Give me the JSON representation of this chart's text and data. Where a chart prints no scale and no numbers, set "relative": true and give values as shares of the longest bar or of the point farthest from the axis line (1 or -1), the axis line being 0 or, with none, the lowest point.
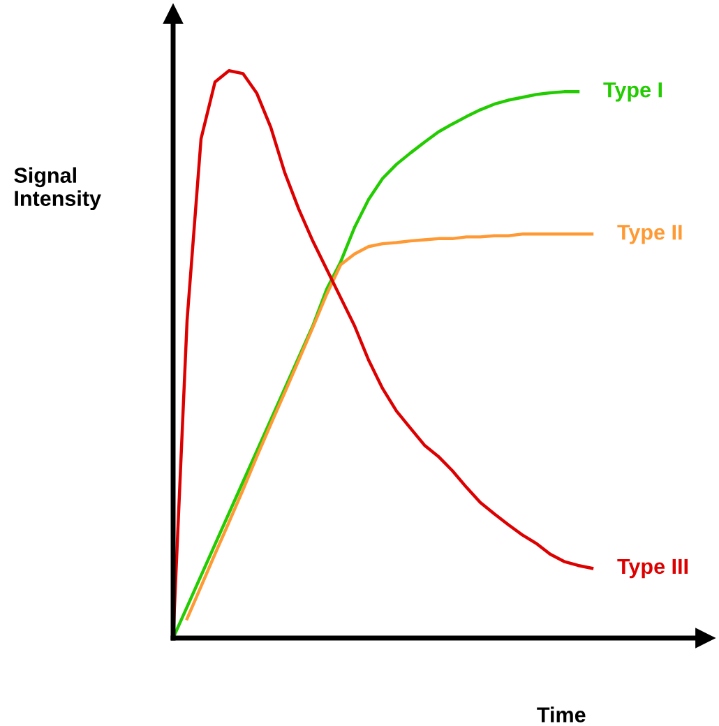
{
  "chart_data": {
    "type": "line",
    "relative": true,
    "xlabel": "Time",
    "ylabel": "Signal\nIntensity",
    "legend": false,
    "marker": "none",
    "line_style": "solid",
    "categories": [
      null,
      null,
      null,
      null,
      null,
      null,
      null,
      null,
      null,
      null,
      null,
      null,
      null,
      null,
      null,
      null,
      null,
      null,
      null,
      null,
      null,
      null,
      null,
      null,
      null,
      null,
      null,
      null,
      null,
      null,
      null
    ],
    "series": [
      {
        "name": "Type I",
        "color": "#22cc00",
        "values": [
          0,
          0.055,
          0.11,
          0.165,
          0.22,
          0.275,
          0.33,
          0.385,
          0.44,
          0.495,
          0.55,
          0.615,
          0.663,
          0.724,
          0.773,
          0.81,
          0.835,
          0.855,
          0.874,
          0.892,
          0.906,
          0.919,
          0.931,
          0.941,
          0.948,
          0.953,
          0.958,
          0.961,
          0.963,
          0.963,
          null
        ]
      },
      {
        "name": "Type II",
        "color": "#ff9933",
        "values": [
          null,
          0.034,
          0.091,
          0.148,
          0.204,
          0.261,
          0.32,
          0.377,
          0.433,
          0.49,
          0.547,
          0.606,
          0.658,
          0.677,
          0.69,
          0.695,
          0.697,
          0.7,
          0.702,
          0.704,
          0.704,
          0.707,
          0.707,
          0.709,
          0.709,
          0.712,
          0.712,
          0.712,
          0.712,
          0.712,
          0.712
        ]
      },
      {
        "name": "Type III",
        "color": "#dd0000",
        "values": [
          0,
          0.56,
          0.88,
          0.98,
          1.0,
          0.995,
          0.96,
          0.9,
          0.82,
          0.756,
          0.7,
          0.65,
          0.6,
          0.55,
          0.49,
          0.44,
          0.4,
          0.37,
          0.34,
          0.32,
          0.295,
          0.266,
          0.239,
          0.219,
          0.2,
          0.182,
          0.167,
          0.148,
          0.135,
          0.128,
          0.123
        ]
      }
    ]
  }
}
